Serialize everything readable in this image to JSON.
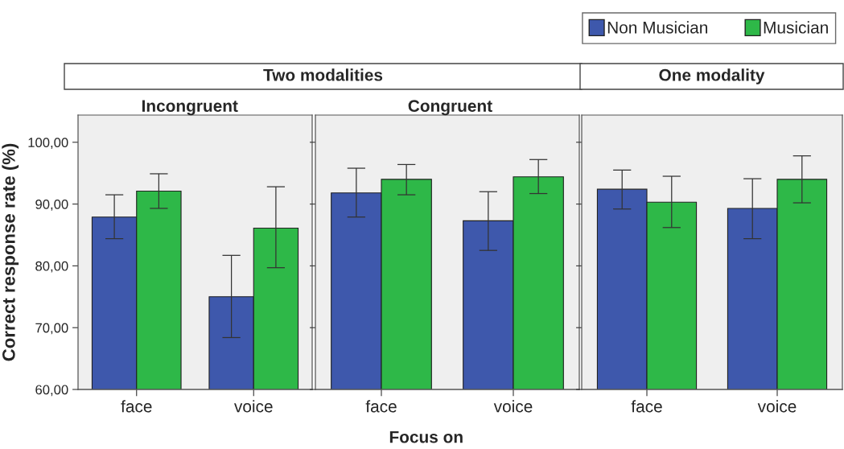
{
  "chart_data": [
    {
      "type": "bar",
      "title": "Incongruent",
      "ylabel": "Correct response rate (%)",
      "annotations": [
        "Two modalities"
      ],
      "categories": [
        "face",
        "voice"
      ],
      "ylim": [
        60,
        104.4
      ],
      "yticks": [
        {
          "value": 60,
          "label": "60,00"
        },
        {
          "value": 70,
          "label": "70,00"
        },
        {
          "value": 80,
          "label": "80,00"
        },
        {
          "value": 90,
          "label": "90,00"
        },
        {
          "value": 100,
          "label": "100,00"
        }
      ],
      "grid": false,
      "legend": false,
      "series": [
        {
          "color": "#3e58ac",
          "values": [
            87.9,
            75.0
          ],
          "errors": [
            [
              84.4,
              91.5
            ],
            [
              68.4,
              81.7
            ]
          ]
        },
        {
          "color": "#2eb848",
          "values": [
            92.1,
            86.1
          ],
          "errors": [
            [
              89.3,
              94.9
            ],
            [
              79.7,
              92.8
            ]
          ]
        }
      ]
    },
    {
      "type": "bar",
      "title": "Congruent",
      "xlabel": "Focus on",
      "categories": [
        "face",
        "voice"
      ],
      "ylim": [
        60,
        104.4
      ],
      "yticks": [
        {
          "value": 60,
          "label": null
        },
        {
          "value": 70,
          "label": null
        },
        {
          "value": 80,
          "label": null
        },
        {
          "value": 90,
          "label": null
        },
        {
          "value": 100,
          "label": null
        }
      ],
      "tick_labels": "x",
      "grid": false,
      "legend": false,
      "series": [
        {
          "color": "#3e58ac",
          "values": [
            91.8,
            87.3
          ],
          "errors": [
            [
              87.9,
              95.8
            ],
            [
              82.5,
              92.0
            ]
          ]
        },
        {
          "color": "#2eb848",
          "values": [
            94.0,
            94.4
          ],
          "errors": [
            [
              91.5,
              96.4
            ],
            [
              91.7,
              97.2
            ]
          ]
        }
      ]
    },
    {
      "type": "bar",
      "annotations": [
        "One modality"
      ],
      "categories": [
        "face",
        "voice"
      ],
      "ylim": [
        60,
        104.4
      ],
      "yticks": [
        {
          "value": 60,
          "label": null
        },
        {
          "value": 70,
          "label": null
        },
        {
          "value": 80,
          "label": null
        },
        {
          "value": 90,
          "label": null
        },
        {
          "value": 100,
          "label": null
        }
      ],
      "tick_labels": "x",
      "grid": false,
      "legend": "top right",
      "series": [
        {
          "name": "Non Musician",
          "color": "#3e58ac",
          "values": [
            92.4,
            89.3
          ],
          "errors": [
            [
              89.2,
              95.5
            ],
            [
              84.4,
              94.1
            ]
          ]
        },
        {
          "name": "Musician",
          "color": "#2eb848",
          "values": [
            90.3,
            94.0
          ],
          "errors": [
            [
              86.2,
              94.5
            ],
            [
              90.2,
              97.8
            ]
          ]
        }
      ]
    }
  ]
}
